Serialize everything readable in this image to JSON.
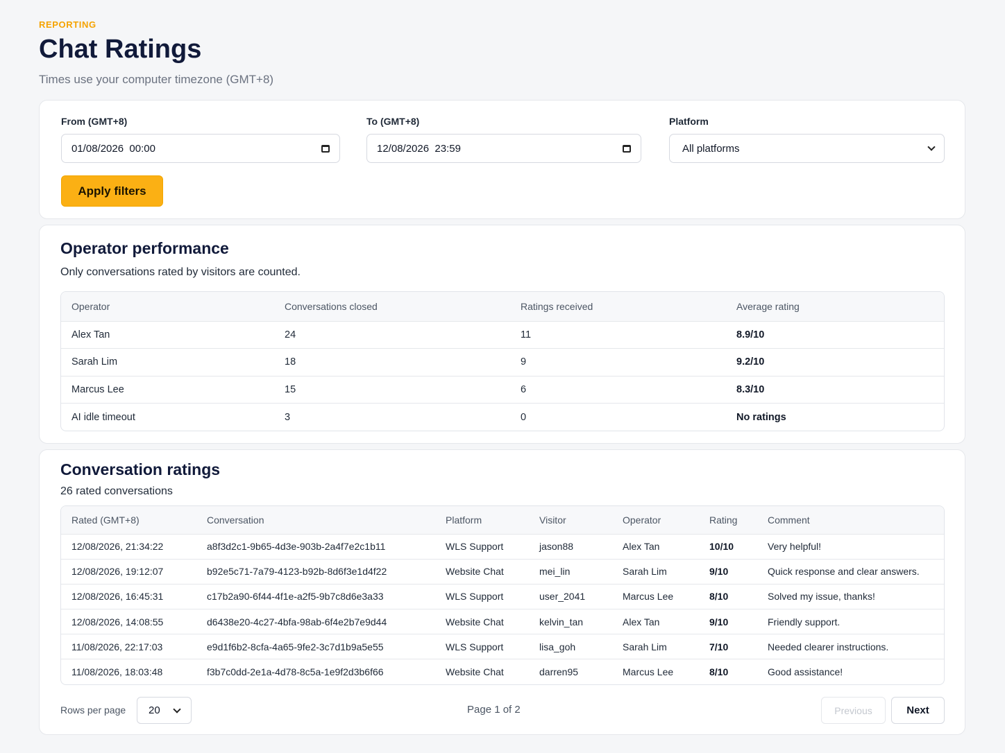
{
  "header": {
    "eyebrow": "REPORTING",
    "title": "Chat Ratings",
    "subtitle": "Times use your computer timezone (GMT+8)"
  },
  "filters": {
    "from_label": "From (GMT+8)",
    "from_value": "01/08/2026  00:00",
    "to_label": "To (GMT+8)",
    "to_value": "12/08/2026  23:59",
    "platform_label": "Platform",
    "platform_value": "All platforms",
    "apply_label": "Apply filters"
  },
  "operator_performance": {
    "title": "Operator performance",
    "subtitle": "Only conversations rated by visitors are counted.",
    "columns": [
      "Operator",
      "Conversations closed",
      "Ratings received",
      "Average rating"
    ],
    "rows": [
      {
        "operator": "Alex Tan",
        "closed": "24",
        "received": "11",
        "average": "8.9/10"
      },
      {
        "operator": "Sarah Lim",
        "closed": "18",
        "received": "9",
        "average": "9.2/10"
      },
      {
        "operator": "Marcus Lee",
        "closed": "15",
        "received": "6",
        "average": "8.3/10"
      },
      {
        "operator": "AI idle timeout",
        "closed": "3",
        "received": "0",
        "average": "No ratings"
      }
    ]
  },
  "conversation_ratings": {
    "title": "Conversation ratings",
    "subtitle": "26 rated conversations",
    "columns": [
      "Rated (GMT+8)",
      "Conversation",
      "Platform",
      "Visitor",
      "Operator",
      "Rating",
      "Comment"
    ],
    "rows": [
      {
        "rated": "12/08/2026, 21:34:22",
        "conversation": "a8f3d2c1-9b65-4d3e-903b-2a4f7e2c1b11",
        "platform": "WLS Support",
        "visitor": "jason88",
        "operator": "Alex Tan",
        "rating": "10/10",
        "comment": "Very helpful!"
      },
      {
        "rated": "12/08/2026, 19:12:07",
        "conversation": "b92e5c71-7a79-4123-b92b-8d6f3e1d4f22",
        "platform": "Website Chat",
        "visitor": "mei_lin",
        "operator": "Sarah Lim",
        "rating": "9/10",
        "comment": "Quick response and clear answers."
      },
      {
        "rated": "12/08/2026, 16:45:31",
        "conversation": "c17b2a90-6f44-4f1e-a2f5-9b7c8d6e3a33",
        "platform": "WLS Support",
        "visitor": "user_2041",
        "operator": "Marcus Lee",
        "rating": "8/10",
        "comment": "Solved my issue, thanks!"
      },
      {
        "rated": "12/08/2026, 14:08:55",
        "conversation": "d6438e20-4c27-4bfa-98ab-6f4e2b7e9d44",
        "platform": "Website Chat",
        "visitor": "kelvin_tan",
        "operator": "Alex Tan",
        "rating": "9/10",
        "comment": "Friendly support."
      },
      {
        "rated": "11/08/2026, 22:17:03",
        "conversation": "e9d1f6b2-8cfa-4a65-9fe2-3c7d1b9a5e55",
        "platform": "WLS Support",
        "visitor": "lisa_goh",
        "operator": "Sarah Lim",
        "rating": "7/10",
        "comment": "Needed clearer instructions."
      },
      {
        "rated": "11/08/2026, 18:03:48",
        "conversation": "f3b7c0dd-2e1a-4d78-8c5a-1e9f2d3b6f66",
        "platform": "Website Chat",
        "visitor": "darren95",
        "operator": "Marcus Lee",
        "rating": "8/10",
        "comment": "Good assistance!"
      }
    ],
    "pagination": {
      "rows_per_page_label": "Rows per page",
      "rows_per_page_value": "20",
      "page_info": "Page 1 of 2",
      "previous_label": "Previous",
      "next_label": "Next"
    }
  },
  "icons": {
    "calendar": "calendar-icon",
    "chevron": "chevron-down-icon"
  },
  "colors": {
    "accent": "#fbb014",
    "eyebrow": "#f5a300",
    "title": "#111a3a",
    "background": "#f5f6f8"
  }
}
